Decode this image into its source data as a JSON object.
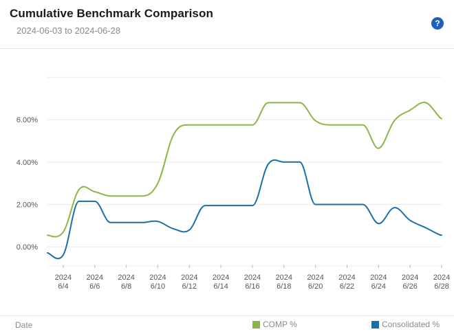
{
  "header": {
    "title": "Cumulative Benchmark Comparison",
    "date_range": "2024-06-03 to 2024-06-28",
    "help_label": "?",
    "help_icon": "question-icon"
  },
  "footer": {
    "xaxis_label": "Date",
    "legend": [
      {
        "label": "COMP %",
        "color": "#8ab547"
      },
      {
        "label": "Consolidated %",
        "color": "#1a6ea8"
      }
    ]
  },
  "chart_data": {
    "type": "line",
    "title": "Cumulative Benchmark Comparison",
    "xlabel": "Date",
    "ylabel": "",
    "x": [
      "2024-06-03",
      "2024-06-04",
      "2024-06-05",
      "2024-06-06",
      "2024-06-07",
      "2024-06-08",
      "2024-06-09",
      "2024-06-10",
      "2024-06-11",
      "2024-06-12",
      "2024-06-13",
      "2024-06-14",
      "2024-06-15",
      "2024-06-16",
      "2024-06-17",
      "2024-06-18",
      "2024-06-19",
      "2024-06-20",
      "2024-06-21",
      "2024-06-22",
      "2024-06-23",
      "2024-06-24",
      "2024-06-25",
      "2024-06-26",
      "2024-06-27",
      "2024-06-28"
    ],
    "ylim": [
      -0.9,
      8.5
    ],
    "yticks": [
      0,
      2,
      4,
      6
    ],
    "ytick_labels": [
      "0.00%",
      "2.00%",
      "4.00%",
      "6.00%"
    ],
    "xticks": [
      {
        "year": "2024",
        "md": "6/4"
      },
      {
        "year": "2024",
        "md": "6/6"
      },
      {
        "year": "2024",
        "md": "6/8"
      },
      {
        "year": "2024",
        "md": "6/10"
      },
      {
        "year": "2024",
        "md": "6/12"
      },
      {
        "year": "2024",
        "md": "6/14"
      },
      {
        "year": "2024",
        "md": "6/16"
      },
      {
        "year": "2024",
        "md": "6/18"
      },
      {
        "year": "2024",
        "md": "6/20"
      },
      {
        "year": "2024",
        "md": "6/22"
      },
      {
        "year": "2024",
        "md": "6/24"
      },
      {
        "year": "2024",
        "md": "6/26"
      },
      {
        "year": "2024",
        "md": "6/28"
      }
    ],
    "grid": true,
    "legend_position": "bottom-right",
    "series": [
      {
        "name": "COMP %",
        "color": "#8ab547",
        "values": [
          0.55,
          0.7,
          2.7,
          2.6,
          2.4,
          2.4,
          2.4,
          3.0,
          5.3,
          5.75,
          5.75,
          5.75,
          5.75,
          5.75,
          6.8,
          6.8,
          6.8,
          5.95,
          5.75,
          5.75,
          5.75,
          4.65,
          5.95,
          6.45,
          6.8,
          6.05
        ]
      },
      {
        "name": "Consolidated %",
        "color": "#1a6ea8",
        "values": [
          -0.28,
          -0.38,
          2.15,
          2.15,
          1.15,
          1.15,
          1.15,
          1.2,
          0.85,
          0.8,
          1.95,
          1.95,
          1.95,
          1.95,
          3.9,
          4.0,
          4.0,
          2.0,
          2.0,
          2.0,
          2.0,
          1.1,
          1.85,
          1.25,
          0.9,
          0.55
        ]
      }
    ]
  }
}
